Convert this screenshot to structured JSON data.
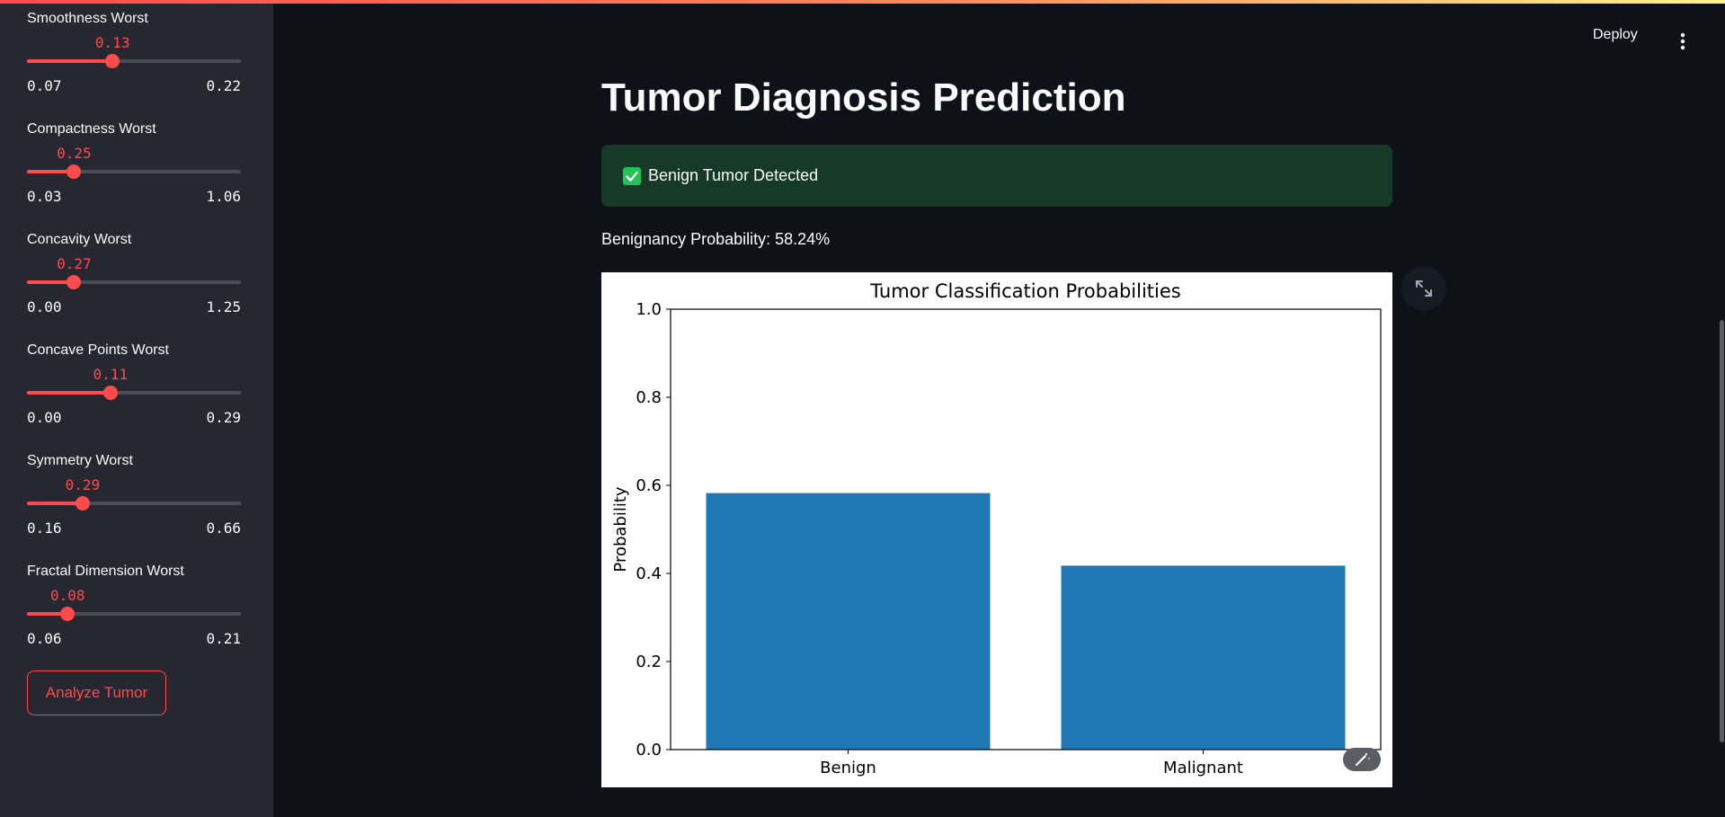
{
  "header": {
    "deploy_label": "Deploy",
    "menu_icon": "kebab-menu-icon"
  },
  "sidebar": {
    "sliders": [
      {
        "label": "Smoothness Worst",
        "value": "0.13",
        "min": "0.07",
        "max": "0.22",
        "fraction": 0.4
      },
      {
        "label": "Compactness Worst",
        "value": "0.25",
        "min": "0.03",
        "max": "1.06",
        "fraction": 0.22
      },
      {
        "label": "Concavity Worst",
        "value": "0.27",
        "min": "0.00",
        "max": "1.25",
        "fraction": 0.22
      },
      {
        "label": "Concave Points Worst",
        "value": "0.11",
        "min": "0.00",
        "max": "0.29",
        "fraction": 0.39
      },
      {
        "label": "Symmetry Worst",
        "value": "0.29",
        "min": "0.16",
        "max": "0.66",
        "fraction": 0.26
      },
      {
        "label": "Fractal Dimension Worst",
        "value": "0.08",
        "min": "0.06",
        "max": "0.21",
        "fraction": 0.19
      }
    ],
    "analyze_button": "Analyze Tumor"
  },
  "main": {
    "title": "Tumor Diagnosis Prediction",
    "alert": {
      "text": "Benign Tumor Detected",
      "icon": "check-icon"
    },
    "probability_text": "Benignancy Probability: 58.24%"
  },
  "colors": {
    "accent": "#ff4b4b",
    "bar": "#1f77b4",
    "success_bg": "#173928",
    "success_icon": "#21c354"
  },
  "chart_data": {
    "type": "bar",
    "title": "Tumor Classification Probabilities",
    "categories": [
      "Benign",
      "Malignant"
    ],
    "values": [
      0.5824,
      0.4176
    ],
    "xlabel": "",
    "ylabel": "Probability",
    "ylim": [
      0,
      1.0
    ],
    "yticks": [
      "0.0",
      "0.2",
      "0.4",
      "0.6",
      "0.8",
      "1.0"
    ],
    "grid": false
  }
}
